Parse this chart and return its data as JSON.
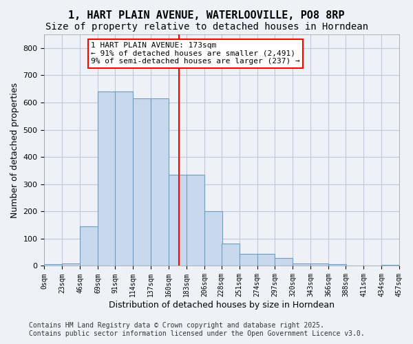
{
  "title": "1, HART PLAIN AVENUE, WATERLOOVILLE, PO8 8RP",
  "subtitle": "Size of property relative to detached houses in Horndean",
  "xlabel": "Distribution of detached houses by size in Horndean",
  "ylabel": "Number of detached properties",
  "bar_color": "#c9d9ed",
  "bar_edge_color": "#6a9ec4",
  "grid_color": "#c0c8d8",
  "background_color": "#eef2f8",
  "vline_x": 173,
  "vline_color": "red",
  "bin_edges": [
    0,
    23,
    46,
    69,
    91,
    114,
    137,
    160,
    183,
    206,
    228,
    251,
    274,
    297,
    320,
    343,
    366,
    388,
    411,
    434,
    457
  ],
  "bar_heights": [
    5,
    10,
    145,
    640,
    640,
    615,
    615,
    335,
    335,
    200,
    83,
    45,
    45,
    28,
    10,
    10,
    5,
    0,
    0,
    3
  ],
  "annotation_text": "1 HART PLAIN AVENUE: 173sqm\n← 91% of detached houses are smaller (2,491)\n9% of semi-detached houses are larger (237) →",
  "annotation_box_color": "white",
  "annotation_box_edge_color": "red",
  "footer_line1": "Contains HM Land Registry data © Crown copyright and database right 2025.",
  "footer_line2": "Contains public sector information licensed under the Open Government Licence v3.0.",
  "title_fontsize": 11,
  "subtitle_fontsize": 10,
  "tick_label_fontsize": 7,
  "ylabel_fontsize": 9,
  "xlabel_fontsize": 9,
  "annotation_fontsize": 8,
  "footer_fontsize": 7,
  "ylim": [
    0,
    850
  ],
  "yticks": [
    0,
    100,
    200,
    300,
    400,
    500,
    600,
    700,
    800
  ]
}
